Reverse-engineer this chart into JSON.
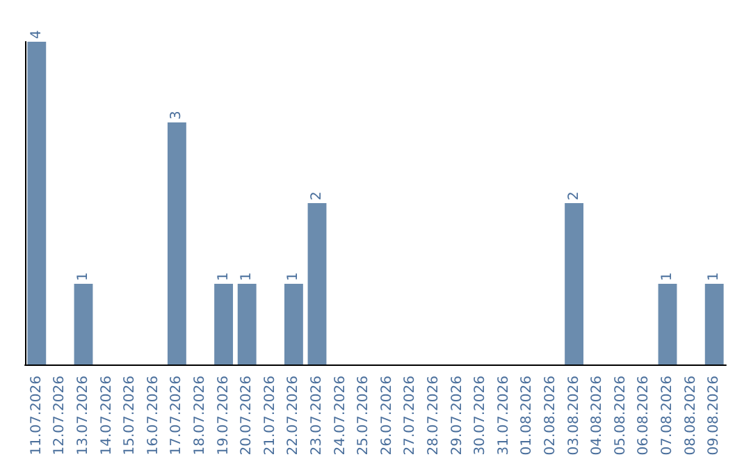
{
  "chart_data": {
    "type": "bar",
    "categories": [
      "11.07.2026",
      "12.07.2026",
      "13.07.2026",
      "14.07.2026",
      "15.07.2026",
      "16.07.2026",
      "17.07.2026",
      "18.07.2026",
      "19.07.2026",
      "20.07.2026",
      "21.07.2026",
      "22.07.2026",
      "23.07.2026",
      "24.07.2026",
      "25.07.2026",
      "26.07.2026",
      "27.07.2026",
      "28.07.2026",
      "29.07.2026",
      "30.07.2026",
      "31.07.2026",
      "01.08.2026",
      "02.08.2026",
      "03.08.2026",
      "04.08.2026",
      "05.08.2026",
      "06.08.2026",
      "07.08.2026",
      "08.08.2026",
      "09.08.2026"
    ],
    "values": [
      4,
      0,
      1,
      0,
      0,
      0,
      3,
      0,
      1,
      1,
      0,
      1,
      2,
      0,
      0,
      0,
      0,
      0,
      0,
      0,
      0,
      0,
      0,
      2,
      0,
      0,
      0,
      1,
      0,
      1
    ],
    "value_labels": [
      "4",
      null,
      "1",
      null,
      null,
      null,
      "3",
      null,
      "1",
      "1",
      null,
      "1",
      "2",
      null,
      null,
      null,
      null,
      null,
      null,
      null,
      null,
      null,
      null,
      "2",
      null,
      null,
      null,
      "1",
      null,
      "1"
    ],
    "color": "#6b8cae",
    "tick_labels": "x",
    "grid": false
  }
}
